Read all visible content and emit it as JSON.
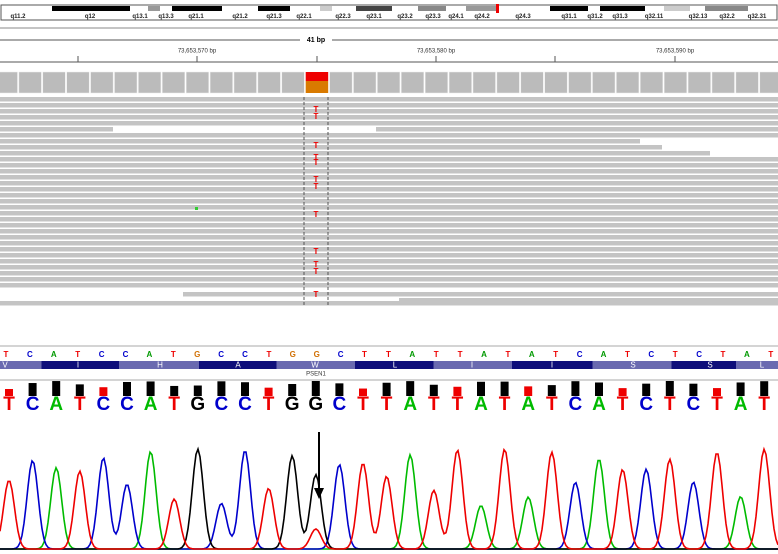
{
  "ideogram": {
    "bands": [
      "q11.2",
      "q12",
      "q13.1",
      "q13.3",
      "q21.1",
      "q21.2",
      "q21.3",
      "q22.1",
      "q22.3",
      "q23.1",
      "q23.2",
      "q23.3",
      "q24.1",
      "q24.2",
      "q24.3",
      "q31.1",
      "q31.2",
      "q31.3",
      "q32.11",
      "q32.13",
      "q32.2",
      "q32.31"
    ]
  },
  "ruler": {
    "span": "41 bp",
    "positions": [
      "73,653,570 bp",
      "73,653,580 bp",
      "73,653,590 bp"
    ]
  },
  "reads": {
    "mismatches": [
      "T",
      "T",
      "T",
      "T",
      "T",
      "T",
      "T",
      "T",
      "T",
      "T",
      "T",
      "T"
    ]
  },
  "reference": {
    "bases": [
      "T",
      "C",
      "A",
      "T",
      "C",
      "C",
      "A",
      "T",
      "G",
      "C",
      "C",
      "T",
      "G",
      "G",
      "C",
      "T",
      "T",
      "A",
      "T",
      "T",
      "A",
      "T",
      "A",
      "T",
      "C",
      "A",
      "T",
      "C",
      "T",
      "C",
      "T",
      "A",
      "T"
    ],
    "translation": [
      "V",
      "I",
      "H",
      "A",
      "W",
      "L",
      "I",
      "I",
      "S",
      "S",
      "L"
    ],
    "gene": "PSEN1"
  },
  "chromatogram": {
    "calls": [
      "T",
      "C",
      "A",
      "T",
      "C",
      "C",
      "A",
      "T",
      "G",
      "C",
      "C",
      "T",
      "G",
      "G",
      "C",
      "T",
      "T",
      "A",
      "T",
      "T",
      "A",
      "T",
      "A",
      "T",
      "C",
      "A",
      "T",
      "C",
      "T",
      "C",
      "T",
      "A",
      "T"
    ]
  }
}
